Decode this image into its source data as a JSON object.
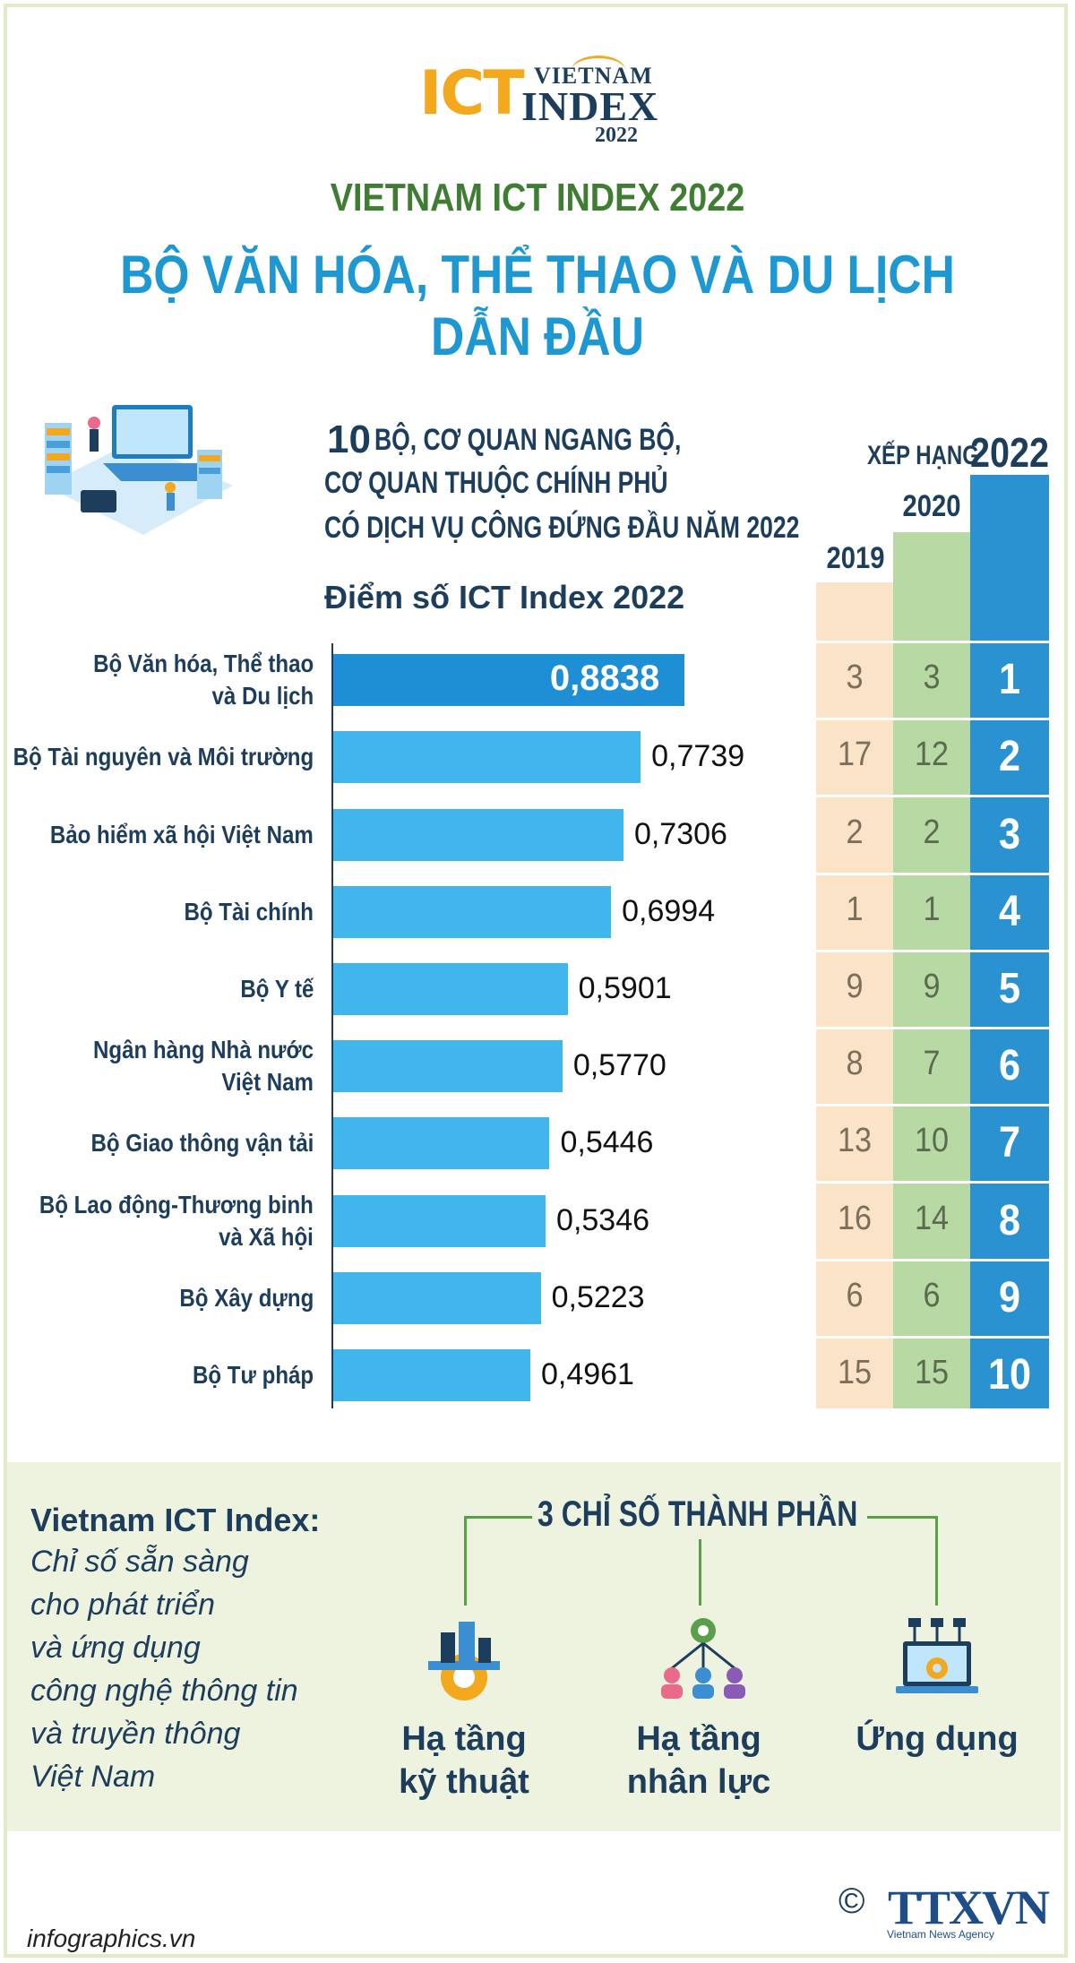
{
  "logo": {
    "ict": "ICT",
    "vietnam": "VIETNAM",
    "index": "INDEX",
    "year": "2022"
  },
  "header": {
    "title": "VIETNAM ICT INDEX 2022",
    "headline": "BỘ VĂN HÓA, THỂ THAO VÀ DU LỊCH DẪN ĐẦU"
  },
  "subtitle": {
    "number": "10",
    "line1": "BỘ, CƠ QUAN NGANG BỘ,",
    "line2": "CƠ QUAN THUỘC CHÍNH PHỦ",
    "line3": "CÓ DỊCH VỤ CÔNG ĐỨNG ĐẦU NĂM 2022"
  },
  "ranking_header": {
    "label": "XẾP HẠNG",
    "year_2022": "2022",
    "year_2020": "2020",
    "year_2019": "2019"
  },
  "chart_data": {
    "type": "bar",
    "orientation": "horizontal",
    "title": "Điểm số ICT Index 2022",
    "categories": [
      [
        "Bộ Văn hóa, Thể thao",
        "và Du lịch"
      ],
      [
        "Bộ Tài nguyên và Môi trường"
      ],
      [
        "Bảo hiểm xã hội Việt Nam"
      ],
      [
        "Bộ Tài chính"
      ],
      [
        "Bộ Y tế"
      ],
      [
        "Ngân hàng Nhà nước",
        "Việt Nam"
      ],
      [
        "Bộ Giao thông vận tải"
      ],
      [
        "Bộ Lao động-Thương binh",
        "và Xã hội"
      ],
      [
        "Bộ Xây dựng"
      ],
      [
        "Bộ Tư pháp"
      ]
    ],
    "values": [
      0.8838,
      0.7739,
      0.7306,
      0.6994,
      0.5901,
      0.577,
      0.5446,
      0.5346,
      0.5223,
      0.4961
    ],
    "value_labels": [
      "0,8838",
      "0,7739",
      "0,7306",
      "0,6994",
      "0,5901",
      "0,5770",
      "0,5446",
      "0,5346",
      "0,5223",
      "0,4961"
    ],
    "xlim": [
      0,
      1.06
    ],
    "ranks": {
      "2019": [
        "3",
        "17",
        "2",
        "1",
        "9",
        "8",
        "13",
        "16",
        "6",
        "15"
      ],
      "2020": [
        "3",
        "12",
        "2",
        "1",
        "9",
        "7",
        "10",
        "14",
        "6",
        "15"
      ],
      "2022": [
        "1",
        "2",
        "3",
        "4",
        "5",
        "6",
        "7",
        "8",
        "9",
        "10"
      ]
    }
  },
  "definition": {
    "title": "Vietnam ICT Index:",
    "lines": [
      "Chỉ số sẵn sàng",
      "cho phát triển",
      "và ứng dụng",
      "công nghệ thông tin",
      "và truyền thông",
      "Việt Nam"
    ]
  },
  "components": {
    "title": "3 CHỈ SỐ THÀNH PHẦN",
    "items": [
      {
        "line1": "Hạ tầng",
        "line2": "kỹ thuật",
        "icon": "city-gear-icon"
      },
      {
        "line1": "Hạ tầng",
        "line2": "nhân lực",
        "icon": "people-network-icon"
      },
      {
        "line1": "Ứng dụng",
        "line2": "",
        "icon": "laptop-gear-icon"
      }
    ]
  },
  "footer": {
    "site": "infographics.vn",
    "copyright": "©",
    "agency": "TTXVN",
    "agency_sub": "Vietnam News Agency"
  },
  "colors": {
    "navy": "#1d3d5c",
    "blue": "#1e98d3",
    "bar": "#41b6ec",
    "green": "#3f7d32"
  }
}
